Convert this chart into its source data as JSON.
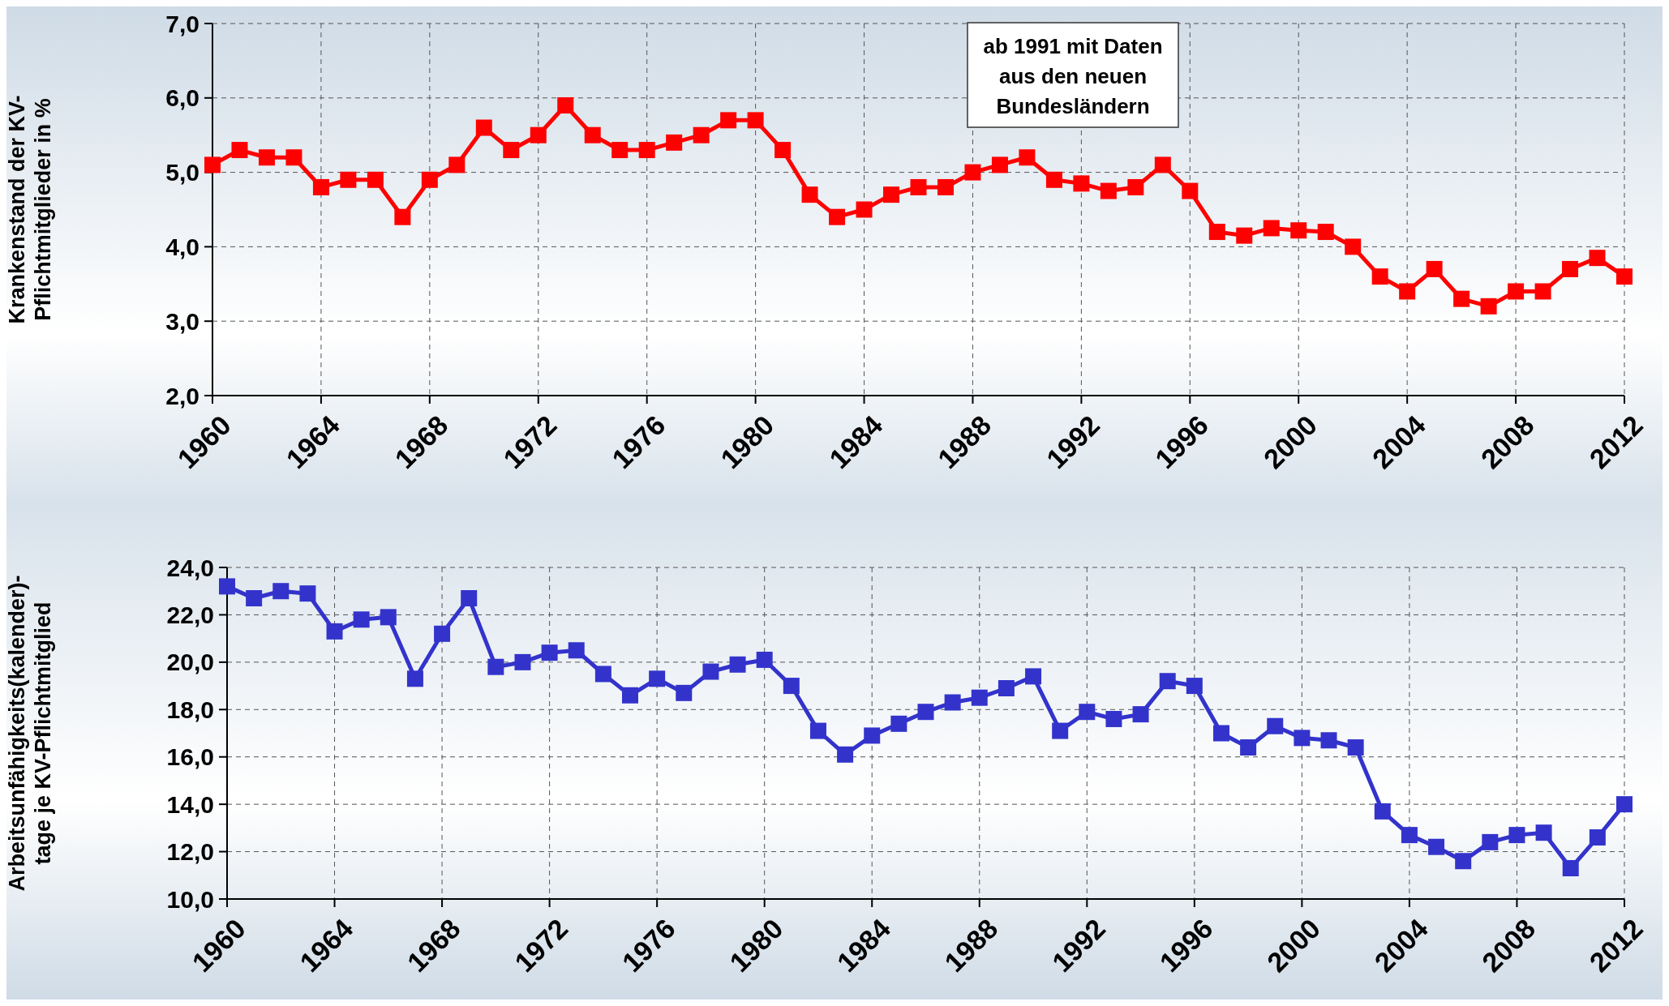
{
  "chart_data": [
    {
      "type": "line",
      "ylabel": "Krankenstand der KV-Pflichtmitglieder in %",
      "x": [
        1960,
        1961,
        1962,
        1963,
        1964,
        1965,
        1966,
        1967,
        1968,
        1969,
        1970,
        1971,
        1972,
        1973,
        1974,
        1975,
        1976,
        1977,
        1978,
        1979,
        1980,
        1981,
        1982,
        1983,
        1984,
        1985,
        1986,
        1987,
        1988,
        1989,
        1990,
        1991,
        1992,
        1993,
        1994,
        1995,
        1996,
        1997,
        1998,
        1999,
        2000,
        2001,
        2002,
        2003,
        2004,
        2005,
        2006,
        2007,
        2008,
        2009,
        2010,
        2011,
        2012
      ],
      "series": [
        {
          "color": "#ff0000",
          "values": [
            5.1,
            5.3,
            5.2,
            5.2,
            4.8,
            4.9,
            4.9,
            4.4,
            4.9,
            5.1,
            5.6,
            5.3,
            5.5,
            5.9,
            5.5,
            5.3,
            5.3,
            5.4,
            5.5,
            5.7,
            5.7,
            5.3,
            4.7,
            4.4,
            4.5,
            4.7,
            4.8,
            4.8,
            5.0,
            5.1,
            5.2,
            4.9,
            4.85,
            4.75,
            4.8,
            5.1,
            4.75,
            4.2,
            4.15,
            4.25,
            4.22,
            4.2,
            4.0,
            3.6,
            3.4,
            3.7,
            3.3,
            3.2,
            3.4,
            3.4,
            3.7,
            3.85,
            3.6
          ]
        }
      ],
      "xlim": [
        1960,
        2012
      ],
      "xticks": [
        1960,
        1964,
        1968,
        1972,
        1976,
        1980,
        1984,
        1988,
        1992,
        1996,
        2000,
        2004,
        2008,
        2012
      ],
      "ylim": [
        2,
        7
      ],
      "yticks": [
        {
          "value": 2,
          "label": "2,0"
        },
        {
          "value": 3,
          "label": "3,0"
        },
        {
          "value": 4,
          "label": "4,0"
        },
        {
          "value": 5,
          "label": "5,0"
        },
        {
          "value": 6,
          "label": "6,0"
        },
        {
          "value": 7,
          "label": "7,0"
        }
      ],
      "annotations": [
        "ab 1991 mit Daten aus den neuen Bundesländern"
      ],
      "grid": true,
      "marker": "square",
      "line_style": "solid"
    },
    {
      "type": "line",
      "ylabel": "Arbeitsunfähigkeits(kalender)-tage je KV-Pflichtmitglied",
      "x": [
        1960,
        1961,
        1962,
        1963,
        1964,
        1965,
        1966,
        1967,
        1968,
        1969,
        1970,
        1971,
        1972,
        1973,
        1974,
        1975,
        1976,
        1977,
        1978,
        1979,
        1980,
        1981,
        1982,
        1983,
        1984,
        1985,
        1986,
        1987,
        1988,
        1989,
        1990,
        1991,
        1992,
        1993,
        1994,
        1995,
        1996,
        1997,
        1998,
        1999,
        2000,
        2001,
        2002,
        2003,
        2004,
        2005,
        2006,
        2007,
        2008,
        2009,
        2010,
        2011,
        2012
      ],
      "series": [
        {
          "color": "#3333cc",
          "values": [
            23.2,
            22.7,
            23.0,
            22.9,
            21.3,
            21.8,
            21.9,
            19.3,
            21.2,
            22.7,
            19.8,
            20.0,
            20.4,
            20.5,
            19.5,
            18.6,
            19.3,
            18.7,
            19.6,
            19.9,
            20.1,
            19.0,
            17.1,
            16.1,
            16.9,
            17.4,
            17.9,
            18.3,
            18.5,
            18.9,
            19.4,
            17.1,
            17.9,
            17.6,
            17.8,
            19.2,
            19.0,
            17.0,
            16.4,
            17.3,
            16.8,
            16.7,
            16.4,
            13.7,
            12.7,
            12.2,
            11.6,
            12.4,
            12.7,
            12.8,
            11.3,
            12.6,
            14.0
          ]
        }
      ],
      "xlim": [
        1960,
        2012
      ],
      "xticks": [
        1960,
        1964,
        1968,
        1972,
        1976,
        1980,
        1984,
        1988,
        1992,
        1996,
        2000,
        2004,
        2008,
        2012
      ],
      "ylim": [
        10,
        24
      ],
      "yticks": [
        {
          "value": 10,
          "label": "10,0"
        },
        {
          "value": 12,
          "label": "12,0"
        },
        {
          "value": 14,
          "label": "14,0"
        },
        {
          "value": 16,
          "label": "16,0"
        },
        {
          "value": 18,
          "label": "18,0"
        },
        {
          "value": 20,
          "label": "20,0"
        },
        {
          "value": 22,
          "label": "22,0"
        },
        {
          "value": 24,
          "label": "24,0"
        }
      ],
      "grid": true,
      "marker": "square",
      "line_style": "solid"
    }
  ]
}
